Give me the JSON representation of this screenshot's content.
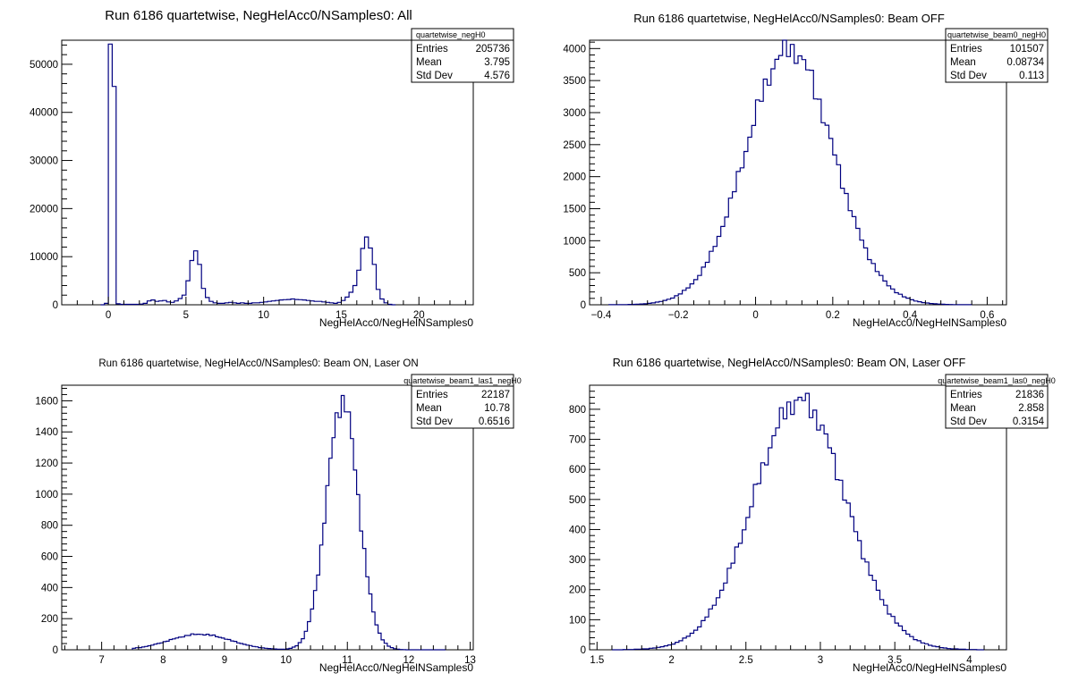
{
  "chart_data": [
    {
      "type": "bar",
      "title": "Run 6186 quartetwise, NegHelAcc0/NSamples0: All",
      "xlabel": "NegHelAcc0/NegHelNSamples0",
      "xlim": [
        -3,
        23.5
      ],
      "ylim": [
        0,
        55000
      ],
      "xticks": [
        0,
        5,
        10,
        15,
        20
      ],
      "yticks": [
        0,
        10000,
        20000,
        30000,
        40000,
        50000
      ],
      "stats": {
        "name": "quartetwise_negH0",
        "entries": "205736",
        "mean": "3.795",
        "std_dev": "4.576"
      },
      "bins": {
        "x_min": -0.5,
        "bin_width": 0.25
      },
      "values": [
        0,
        300,
        54200,
        45400,
        200,
        100,
        100,
        100,
        100,
        100,
        150,
        300,
        800,
        1000,
        700,
        800,
        900,
        600,
        500,
        800,
        1300,
        2000,
        5000,
        9200,
        11200,
        8400,
        3400,
        1500,
        700,
        400,
        300,
        300,
        400,
        500,
        400,
        300,
        400,
        300,
        300,
        400,
        400,
        500,
        600,
        700,
        800,
        900,
        1000,
        1050,
        1100,
        1200,
        1100,
        1050,
        1000,
        900,
        800,
        700,
        700,
        600,
        500,
        400,
        300,
        500,
        900,
        1600,
        2600,
        4000,
        7200,
        11700,
        14100,
        11800,
        8400,
        3200,
        1200,
        400,
        100,
        0
      ],
      "labels": {
        "entries": "Entries",
        "mean": "Mean",
        "std_dev": "Std Dev"
      }
    },
    {
      "type": "bar",
      "title": "Run 6186 quartetwise, NegHelAcc0/NSamples0: Beam OFF",
      "xlabel": "NegHelAcc0/NegHelNSamples0",
      "xlim": [
        -0.43,
        0.65
      ],
      "ylim": [
        0,
        4130
      ],
      "xticks": [
        -0.4,
        -0.2,
        0,
        0.2,
        0.4,
        0.6
      ],
      "ytick_values": [
        0,
        500,
        1000,
        1500,
        2000,
        2500,
        3000,
        3500,
        4000
      ],
      "stats": {
        "name": "quartetwise_beam0_negH0",
        "entries": "101507",
        "mean": "0.08734",
        "std_dev": "0.113"
      },
      "gauss": {
        "mean": 0.088,
        "sigma": 0.113,
        "peak": 3990,
        "x_min": -0.38,
        "x_max": 0.56,
        "bin_width": 0.01
      },
      "labels": {
        "entries": "Entries",
        "mean": "Mean",
        "std_dev": "Std Dev"
      }
    },
    {
      "type": "bar",
      "title": "Run 6186 quartetwise, NegHelAcc0/NSamples0: Beam ON, Laser ON",
      "xlabel": "NegHelAcc0/NegHelNSamples0",
      "xlim": [
        6.35,
        13.05
      ],
      "ylim": [
        0,
        1700
      ],
      "xticks": [
        7,
        8,
        9,
        10,
        11,
        12,
        13
      ],
      "ytick_values": [
        0,
        200,
        400,
        600,
        800,
        1000,
        1200,
        1400,
        1600
      ],
      "stats": {
        "name": "quartetwise_beam1_las1_negH0",
        "entries": "22187",
        "mean": "10.78",
        "std_dev": "0.6516"
      },
      "gauss": {
        "mean": 10.92,
        "sigma": 0.26,
        "peak": 1600,
        "x_min": 7.5,
        "x_max": 12.6,
        "bin_width": 0.05
      },
      "bump": {
        "mean": 8.6,
        "sigma": 0.5,
        "peak": 100
      },
      "labels": {
        "entries": "Entries",
        "mean": "Mean",
        "std_dev": "Std Dev"
      }
    },
    {
      "type": "bar",
      "title": "Run 6186 quartetwise, NegHelAcc0/NSamples0: Beam ON, Laser OFF",
      "xlabel": "NegHelAcc0/NegHelNSamples0",
      "xlim": [
        1.45,
        4.25
      ],
      "ylim": [
        0,
        880
      ],
      "xticks": [
        1.5,
        2,
        2.5,
        3,
        3.5,
        4
      ],
      "ytick_values": [
        0,
        100,
        200,
        300,
        400,
        500,
        600,
        700,
        800
      ],
      "stats": {
        "name": "quartetwise_beam1_las0_negH0",
        "entries": "21836",
        "mean": "2.858",
        "std_dev": "0.3154"
      },
      "gauss": {
        "mean": 2.86,
        "sigma": 0.31,
        "peak": 830,
        "x_min": 1.6,
        "x_max": 4.1,
        "bin_width": 0.025
      },
      "labels": {
        "entries": "Entries",
        "mean": "Mean",
        "std_dev": "Std Dev"
      }
    }
  ]
}
